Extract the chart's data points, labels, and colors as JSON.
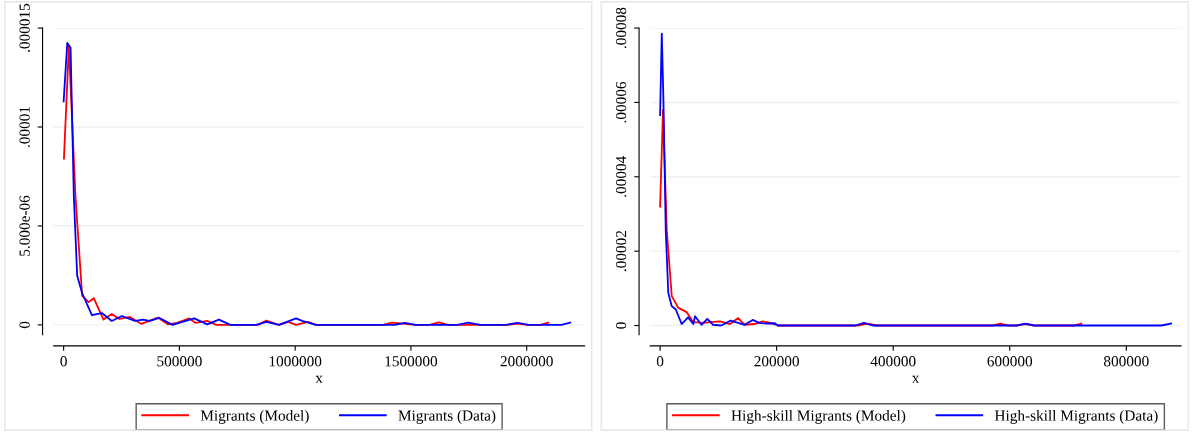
{
  "chart_data": [
    {
      "type": "line",
      "xlabel": "x",
      "xlim": [
        -43000,
        2250000
      ],
      "xticks": [
        0,
        500000,
        1000000,
        1500000,
        2000000
      ],
      "ylim": [
        -5e-07,
        1.5e-05
      ],
      "yticks": [
        0,
        {
          "value": 5e-06,
          "label": "5.000e-06"
        },
        {
          "value": 1e-05,
          "label": ".00001"
        },
        {
          "value": 1.5e-05,
          "label": ".000015"
        }
      ],
      "grid": "y",
      "legend": "bottom",
      "marker": "none",
      "line_style": "solid",
      "series": [
        {
          "name": "Migrants (Model)",
          "color": "#ff0000",
          "x": [
            1300,
            22600,
            51000,
            80000,
            108000,
            130000,
            172000,
            208000,
            240000,
            286000,
            336000,
            407000,
            450000,
            490000,
            543000,
            570000,
            620000,
            660000,
            840000,
            876000,
            930000,
            970000,
            1004000,
            1056000,
            1090000,
            1380000,
            1419000,
            1474000,
            1520000,
            1580000,
            1620000,
            1660000,
            1920000,
            1960000,
            2000000,
            2060000,
            2094000
          ],
          "values": [
            8.4e-06,
            1.41e-05,
            6.5e-06,
            1.47e-06,
            1.15e-06,
            1.35e-06,
            2.7e-07,
            5.5e-07,
            3e-07,
            4e-07,
            5e-08,
            3.7e-07,
            3e-08,
            1e-07,
            3.3e-07,
            1e-07,
            2e-07,
            0,
            0,
            2.2e-07,
            0,
            1.5e-07,
            0,
            1.5e-07,
            0,
            0,
            1.2e-07,
            5e-08,
            0,
            0,
            1.3e-07,
            0,
            0,
            7e-08,
            0,
            0,
            1.2e-07
          ]
        },
        {
          "name": "Migrants (Data)",
          "color": "#0000ff",
          "x": [
            0,
            15800,
            30000,
            44000,
            58500,
            80000,
            122000,
            165000,
            208000,
            251000,
            308000,
            343000,
            372000,
            414000,
            470000,
            564000,
            620000,
            671000,
            720000,
            830000,
            876000,
            930000,
            1004000,
            1030000,
            1090000,
            1430000,
            1474000,
            1520000,
            1700000,
            1748000,
            1800000,
            1910000,
            1960000,
            2010000,
            2150000,
            2188000
          ],
          "values": [
            1.13e-05,
            1.425e-05,
            1.4e-05,
            6.5e-06,
            2.48e-06,
            1.6e-06,
            5e-07,
            6e-07,
            2e-07,
            4.5e-07,
            2e-07,
            2.7e-07,
            2e-07,
            3.5e-07,
            0,
            3.3e-07,
            3e-08,
            2.7e-07,
            0,
            0,
            1.5e-07,
            0,
            3.3e-07,
            2e-07,
            0,
            0,
            1e-07,
            0,
            0,
            1.2e-07,
            0,
            0,
            1e-07,
            0,
            0,
            1.2e-07
          ]
        }
      ]
    },
    {
      "type": "line",
      "xlabel": "x",
      "xlim": [
        -17000,
        894000
      ],
      "xticks": [
        0,
        200000,
        400000,
        600000,
        800000
      ],
      "ylim": [
        -2.5e-06,
        8e-05
      ],
      "yticks": [
        0,
        {
          "value": 2e-05,
          "label": ".00002"
        },
        {
          "value": 4e-05,
          "label": ".00004"
        },
        {
          "value": 6e-05,
          "label": ".00006"
        },
        {
          "value": 8e-05,
          "label": ".00008"
        }
      ],
      "grid": "y",
      "legend": "bottom",
      "marker": "none",
      "line_style": "solid",
      "series": [
        {
          "name": "High-skill Migrants (Model)",
          "color": "#ff0000",
          "x": [
            0,
            5000,
            11400,
            20000,
            31000,
            45500,
            57000,
            74000,
            91000,
            103000,
            120000,
            134000,
            145000,
            162000,
            176000,
            190000,
            202000,
            340000,
            356000,
            372000,
            570000,
            584000,
            598000,
            612000,
            627000,
            642000,
            710000,
            723000
          ],
          "values": [
            3.2e-05,
            5.8e-05,
            2.57e-05,
            7.9e-06,
            4.8e-06,
            3.6e-06,
            9e-07,
            7e-07,
            1e-06,
            1.1e-06,
            4e-07,
            2e-06,
            2e-07,
            4e-07,
            1.1e-06,
            7e-07,
            0,
            0,
            5e-07,
            0,
            0,
            5e-07,
            0,
            0,
            4e-07,
            0,
            0,
            5e-07
          ]
        },
        {
          "name": "High-skill Migrants (Data)",
          "color": "#0000ff",
          "x": [
            0,
            2900,
            5600,
            9700,
            14000,
            20000,
            27000,
            37000,
            48000,
            57000,
            60000,
            71000,
            81000,
            91000,
            105000,
            121000,
            134000,
            145000,
            159000,
            170000,
            182000,
            197000,
            202000,
            335000,
            350000,
            365000,
            612000,
            627000,
            642000,
            860000,
            877000
          ],
          "values": [
            5.66e-05,
            7.85e-05,
            6.15e-05,
            2.57e-05,
            8.8e-06,
            5.2e-06,
            4.3e-06,
            4e-07,
            2.2e-06,
            4e-07,
            2.5e-06,
            2e-07,
            1.8e-06,
            2e-07,
            0,
            1.3e-06,
            7e-07,
            2e-07,
            1.5e-06,
            7e-07,
            5e-07,
            6e-07,
            0,
            0,
            7e-07,
            0,
            0,
            5e-07,
            0,
            0,
            5e-07
          ]
        }
      ]
    }
  ]
}
